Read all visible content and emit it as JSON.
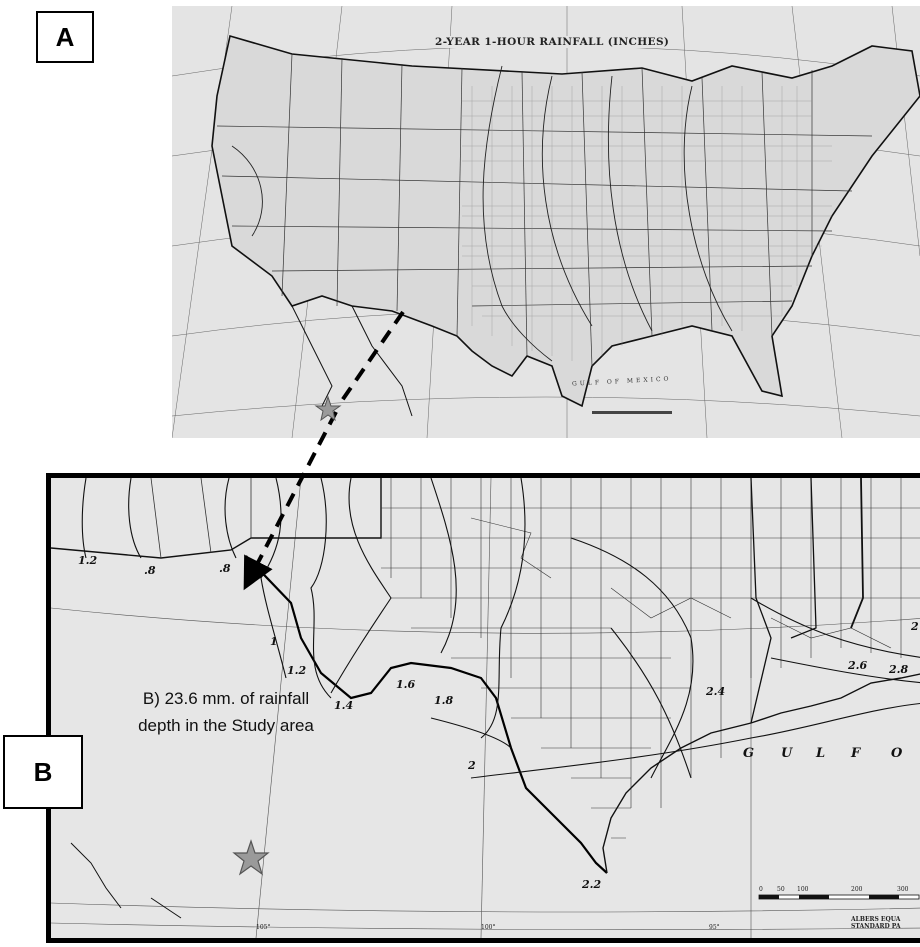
{
  "panel_labels": {
    "a": "A",
    "b": "B"
  },
  "map_a": {
    "title": "2-YEAR 1-HOUR RAINFALL (INCHES)",
    "gulf_label": "GULF OF MEXICO"
  },
  "map_b": {
    "annotation": "B) 23.6 mm. of rainfall depth in the Study area",
    "gulf_letters": [
      "G",
      "U",
      "L",
      "F",
      "O"
    ],
    "contour_labels": [
      "1.2",
      ".8",
      ".8",
      "1",
      "1.2",
      "1.4",
      "1.6",
      "1.8",
      "2",
      "2.4",
      "2.6",
      "2.8",
      "2.2",
      "2"
    ],
    "longitude_labels": [
      "105°",
      "100°",
      "95°"
    ],
    "scale_ticks": [
      "0",
      "50",
      "100",
      "200",
      "300"
    ],
    "projection_note": [
      "ALBERS EQUA",
      "STANDARD PA"
    ]
  },
  "study_area_marker": "star-icon",
  "colors": {
    "star_fill": "#9a9a9a",
    "star_stroke": "#555555",
    "arrow": "#000000"
  }
}
